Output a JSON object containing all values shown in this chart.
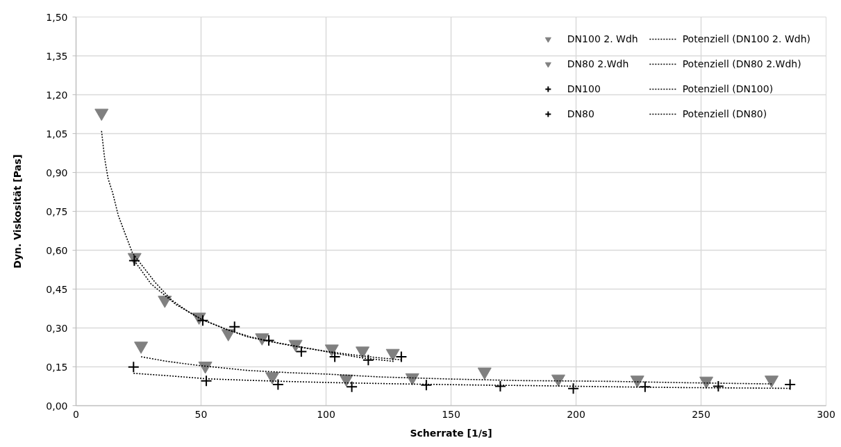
{
  "chart_data": {
    "type": "scatter",
    "xlabel": "Scherrate [1/s]",
    "ylabel": "Dyn. Viskosität [Pas]",
    "xlim": [
      0,
      300
    ],
    "ylim": [
      0,
      1.5
    ],
    "xticks": [
      0,
      50,
      100,
      150,
      200,
      250,
      300
    ],
    "yticks": [
      {
        "value": 0,
        "label": "0,00"
      },
      {
        "value": 0.15,
        "label": "0,15"
      },
      {
        "value": 0.3,
        "label": "0,30"
      },
      {
        "value": 0.45,
        "label": "0,45"
      },
      {
        "value": 0.6,
        "label": "0,60"
      },
      {
        "value": 0.75,
        "label": "0,75"
      },
      {
        "value": 0.9,
        "label": "0,90"
      },
      {
        "value": 1.05,
        "label": "1,05"
      },
      {
        "value": 1.2,
        "label": "1,20"
      },
      {
        "value": 1.35,
        "label": "1,35"
      },
      {
        "value": 1.5,
        "label": "1,50"
      }
    ],
    "grid": true,
    "legend": "top right",
    "series": [
      {
        "name": "DN100 2. Wdh",
        "marker": "triangle",
        "color": "#808080",
        "x": [
          10.2,
          23.4,
          35.5,
          49.2,
          60.9,
          74.4,
          87.8,
          102.3,
          114.6,
          126.7
        ],
        "values": [
          1.13,
          0.573,
          0.408,
          0.343,
          0.279,
          0.263,
          0.238,
          0.22,
          0.212,
          0.203
        ]
      },
      {
        "name": "Potenziell (DN100 2. Wdh)",
        "type": "line",
        "marker": "none",
        "line_style": "dotted",
        "color": "#000000",
        "x": [
          10.2,
          11.4,
          12.8,
          14.6,
          16.9,
          19.7,
          22.5,
          25.3,
          31.7,
          38.2,
          44.7,
          50.3,
          59.5,
          68.8,
          78.1,
          85.5,
          93.8,
          103.1,
          114.2,
          127
        ],
        "values": [
          1.06,
          0.957,
          0.877,
          0.823,
          0.734,
          0.662,
          0.591,
          0.555,
          0.475,
          0.408,
          0.364,
          0.332,
          0.297,
          0.265,
          0.247,
          0.234,
          0.22,
          0.203,
          0.185,
          0.171
        ]
      },
      {
        "name": "DN80 2.Wdh",
        "marker": "triangle",
        "color": "#808080",
        "x": [
          26.0,
          51.7,
          78.5,
          108.1,
          134.5,
          163.4,
          192.9,
          224.5,
          252.1,
          278.2
        ],
        "values": [
          0.231,
          0.154,
          0.113,
          0.104,
          0.109,
          0.131,
          0.104,
          0.1,
          0.096,
          0.1
        ]
      },
      {
        "name": "Potenziell (DN80 2.Wdh)",
        "type": "line",
        "marker": "none",
        "line_style": "dotted",
        "color": "#000000",
        "x": [
          26,
          36.4,
          50.3,
          68.8,
          86.4,
          100.3,
          121.6,
          149.4,
          177.1,
          214,
          242,
          278.2
        ],
        "values": [
          0.189,
          0.171,
          0.154,
          0.136,
          0.127,
          0.122,
          0.111,
          0.103,
          0.097,
          0.094,
          0.089,
          0.084
        ]
      },
      {
        "name": "DN100",
        "marker": "cross",
        "color": "#000000",
        "x": [
          23.3,
          50.7,
          63.4,
          77.1,
          90.1,
          103.5,
          116.9,
          130.1
        ],
        "values": [
          0.56,
          0.329,
          0.305,
          0.252,
          0.209,
          0.189,
          0.176,
          0.189
        ]
      },
      {
        "name": "Potenziell (DN100)",
        "type": "line",
        "marker": "none",
        "line_style": "dotted",
        "color": "#000000",
        "x": [
          23.3,
          30,
          40,
          50,
          60,
          70,
          80,
          90,
          100,
          110,
          120,
          130.1
        ],
        "values": [
          0.56,
          0.47,
          0.39,
          0.335,
          0.295,
          0.265,
          0.243,
          0.225,
          0.21,
          0.197,
          0.186,
          0.177
        ]
      },
      {
        "name": "DN80",
        "marker": "cross",
        "color": "#000000",
        "x": [
          23.0,
          52.1,
          80.8,
          110.3,
          140.1,
          169.7,
          198.9,
          227.6,
          256.9,
          285.6
        ],
        "values": [
          0.149,
          0.096,
          0.082,
          0.073,
          0.08,
          0.075,
          0.066,
          0.073,
          0.075,
          0.082
        ]
      },
      {
        "name": "Potenziell (DN80)",
        "type": "line",
        "marker": "none",
        "line_style": "dotted",
        "color": "#000000",
        "x": [
          23,
          36.4,
          52.1,
          68.8,
          86.4,
          103,
          130.8,
          158.6,
          186.4,
          214,
          242,
          285.6
        ],
        "values": [
          0.125,
          0.116,
          0.104,
          0.098,
          0.093,
          0.089,
          0.084,
          0.08,
          0.077,
          0.073,
          0.07,
          0.067
        ]
      }
    ]
  }
}
